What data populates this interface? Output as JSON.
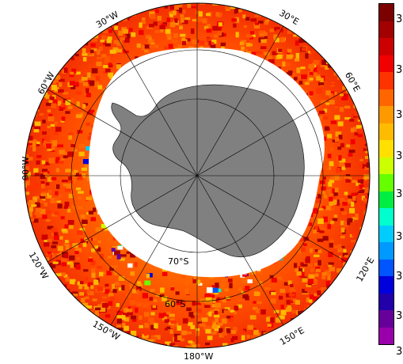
{
  "map": {
    "projection": "south polar stereographic",
    "longitude_labels": {
      "lon_30w": "30°W",
      "lon_30e": "30°E",
      "lon_60w": "60°W",
      "lon_60e": "60°E",
      "lon_90w": "90°W",
      "lon_120w": "120°W",
      "lon_120e": "120°E",
      "lon_150w": "150°W",
      "lon_150e": "150°E",
      "lon_180w": "180°W"
    },
    "latitude_labels": {
      "lat_70s": "70°S",
      "lat_60s": "60°S"
    },
    "colors": {
      "land": "#808080",
      "ocean_nodata": "#ffffff",
      "graticule": "#000000"
    }
  },
  "colorbar": {
    "colors": [
      "#7b0000",
      "#a30000",
      "#cc0000",
      "#f20000",
      "#ff3300",
      "#ff6600",
      "#ff9900",
      "#ffbb00",
      "#ffe000",
      "#ccff00",
      "#66ff00",
      "#00ee44",
      "#00ffcc",
      "#00ccff",
      "#0099ff",
      "#0055ff",
      "#0000dd",
      "#2200aa",
      "#660099",
      "#9900aa"
    ],
    "tick_labels": [
      "3",
      "3",
      "3",
      "3",
      "3",
      "3",
      "3",
      "3",
      "3"
    ]
  }
}
